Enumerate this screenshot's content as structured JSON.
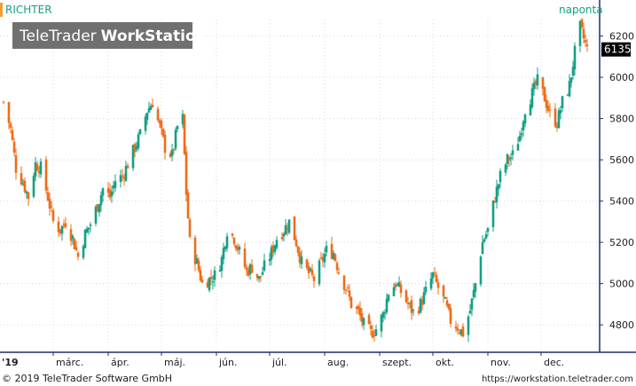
{
  "chart_data": {
    "type": "candlestick",
    "symbol": "RICHTER",
    "interval_label": "naponta",
    "watermark": "TeleTrader WorkStation",
    "watermark_parts": [
      "TeleTrader",
      "WorkStation"
    ],
    "last_price": "6135",
    "ylim": [
      4680,
      6280
    ],
    "y_ticks": [
      4800,
      5000,
      5200,
      5400,
      5600,
      5800,
      6000,
      6200
    ],
    "y_tick_labels": [
      "4800",
      "5000",
      "5200",
      "5400",
      "5600",
      "5800",
      "6000",
      "6200"
    ],
    "year_label": "'19",
    "month_labels": [
      "márc.",
      "ápr.",
      "máj.",
      "jún.",
      "júl.",
      "aug.",
      "szept.",
      "okt.",
      "nov.",
      "dec."
    ],
    "month_dates": [
      "2019-03-01",
      "2019-04-01",
      "2019-05-01",
      "2019-06-01",
      "2019-07-01",
      "2019-08-01",
      "2019-09-01",
      "2019-10-01",
      "2019-11-01",
      "2019-12-01"
    ],
    "x_start": "2019-02-01",
    "x_end": "2019-12-31",
    "grid": true,
    "colors": {
      "up": "#14a085",
      "down": "#ef6c1a",
      "axis": "#1f2f6e",
      "text": "#202020",
      "grid": "#d8d8d8",
      "last_price_bg": "#000000",
      "last_price_fg": "#ffffff",
      "title": "#14a085",
      "watermark_bg": "#707070",
      "watermark_fg": "#ffffff",
      "symbol_tick": "#f0a030"
    },
    "price_path": [
      [
        "2019-02-01",
        5880
      ],
      [
        "2019-02-05",
        5750
      ],
      [
        "2019-02-08",
        5560
      ],
      [
        "2019-02-12",
        5490
      ],
      [
        "2019-02-15",
        5420
      ],
      [
        "2019-02-19",
        5580
      ],
      [
        "2019-02-22",
        5560
      ],
      [
        "2019-02-26",
        5420
      ],
      [
        "2019-03-01",
        5300
      ],
      [
        "2019-03-05",
        5260
      ],
      [
        "2019-03-08",
        5300
      ],
      [
        "2019-03-12",
        5220
      ],
      [
        "2019-03-15",
        5130
      ],
      [
        "2019-03-19",
        5240
      ],
      [
        "2019-03-22",
        5290
      ],
      [
        "2019-03-26",
        5380
      ],
      [
        "2019-03-29",
        5460
      ],
      [
        "2019-04-02",
        5420
      ],
      [
        "2019-04-05",
        5500
      ],
      [
        "2019-04-09",
        5520
      ],
      [
        "2019-04-12",
        5580
      ],
      [
        "2019-04-16",
        5660
      ],
      [
        "2019-04-19",
        5720
      ],
      [
        "2019-04-23",
        5840
      ],
      [
        "2019-04-26",
        5880
      ],
      [
        "2019-04-30",
        5760
      ],
      [
        "2019-05-03",
        5660
      ],
      [
        "2019-05-07",
        5620
      ],
      [
        "2019-05-10",
        5760
      ],
      [
        "2019-05-13",
        5800
      ],
      [
        "2019-05-15",
        5440
      ],
      [
        "2019-05-17",
        5200
      ],
      [
        "2019-05-21",
        5100
      ],
      [
        "2019-05-24",
        5000
      ],
      [
        "2019-05-28",
        5020
      ],
      [
        "2019-05-31",
        5040
      ],
      [
        "2019-06-04",
        5120
      ],
      [
        "2019-06-07",
        5260
      ],
      [
        "2019-06-11",
        5220
      ],
      [
        "2019-06-14",
        5150
      ],
      [
        "2019-06-18",
        5060
      ],
      [
        "2019-06-21",
        5080
      ],
      [
        "2019-06-25",
        5020
      ],
      [
        "2019-06-28",
        5080
      ],
      [
        "2019-07-02",
        5150
      ],
      [
        "2019-07-05",
        5220
      ],
      [
        "2019-07-09",
        5260
      ],
      [
        "2019-07-12",
        5300
      ],
      [
        "2019-07-16",
        5200
      ],
      [
        "2019-07-19",
        5100
      ],
      [
        "2019-07-23",
        5050
      ],
      [
        "2019-07-26",
        5020
      ],
      [
        "2019-07-30",
        5100
      ],
      [
        "2019-08-02",
        5160
      ],
      [
        "2019-08-06",
        5150
      ],
      [
        "2019-08-09",
        5060
      ],
      [
        "2019-08-13",
        4980
      ],
      [
        "2019-08-16",
        4900
      ],
      [
        "2019-08-20",
        4860
      ],
      [
        "2019-08-23",
        4800
      ],
      [
        "2019-08-27",
        4760
      ],
      [
        "2019-08-30",
        4780
      ],
      [
        "2019-09-03",
        4850
      ],
      [
        "2019-09-06",
        4960
      ],
      [
        "2019-09-10",
        5000
      ],
      [
        "2019-09-13",
        4960
      ],
      [
        "2019-09-17",
        4900
      ],
      [
        "2019-09-20",
        4860
      ],
      [
        "2019-09-24",
        4900
      ],
      [
        "2019-09-27",
        4960
      ],
      [
        "2019-10-01",
        5040
      ],
      [
        "2019-10-04",
        4980
      ],
      [
        "2019-10-08",
        4900
      ],
      [
        "2019-10-11",
        4820
      ],
      [
        "2019-10-15",
        4790
      ],
      [
        "2019-10-18",
        4760
      ],
      [
        "2019-10-22",
        4870
      ],
      [
        "2019-10-25",
        5000
      ],
      [
        "2019-10-29",
        5200
      ],
      [
        "2019-11-01",
        5260
      ],
      [
        "2019-11-05",
        5420
      ],
      [
        "2019-11-08",
        5520
      ],
      [
        "2019-11-12",
        5600
      ],
      [
        "2019-11-15",
        5620
      ],
      [
        "2019-11-19",
        5720
      ],
      [
        "2019-11-22",
        5850
      ],
      [
        "2019-11-26",
        5920
      ],
      [
        "2019-11-29",
        5980
      ],
      [
        "2019-12-03",
        5900
      ],
      [
        "2019-12-06",
        5820
      ],
      [
        "2019-12-10",
        5780
      ],
      [
        "2019-12-13",
        5880
      ],
      [
        "2019-12-17",
        5960
      ],
      [
        "2019-12-20",
        6120
      ],
      [
        "2019-12-23",
        6240
      ],
      [
        "2019-12-27",
        6135
      ]
    ]
  },
  "footer": {
    "copyright": "© 2019 TeleTrader Software GmbH",
    "url": "https://workstation.teletrader.com"
  }
}
